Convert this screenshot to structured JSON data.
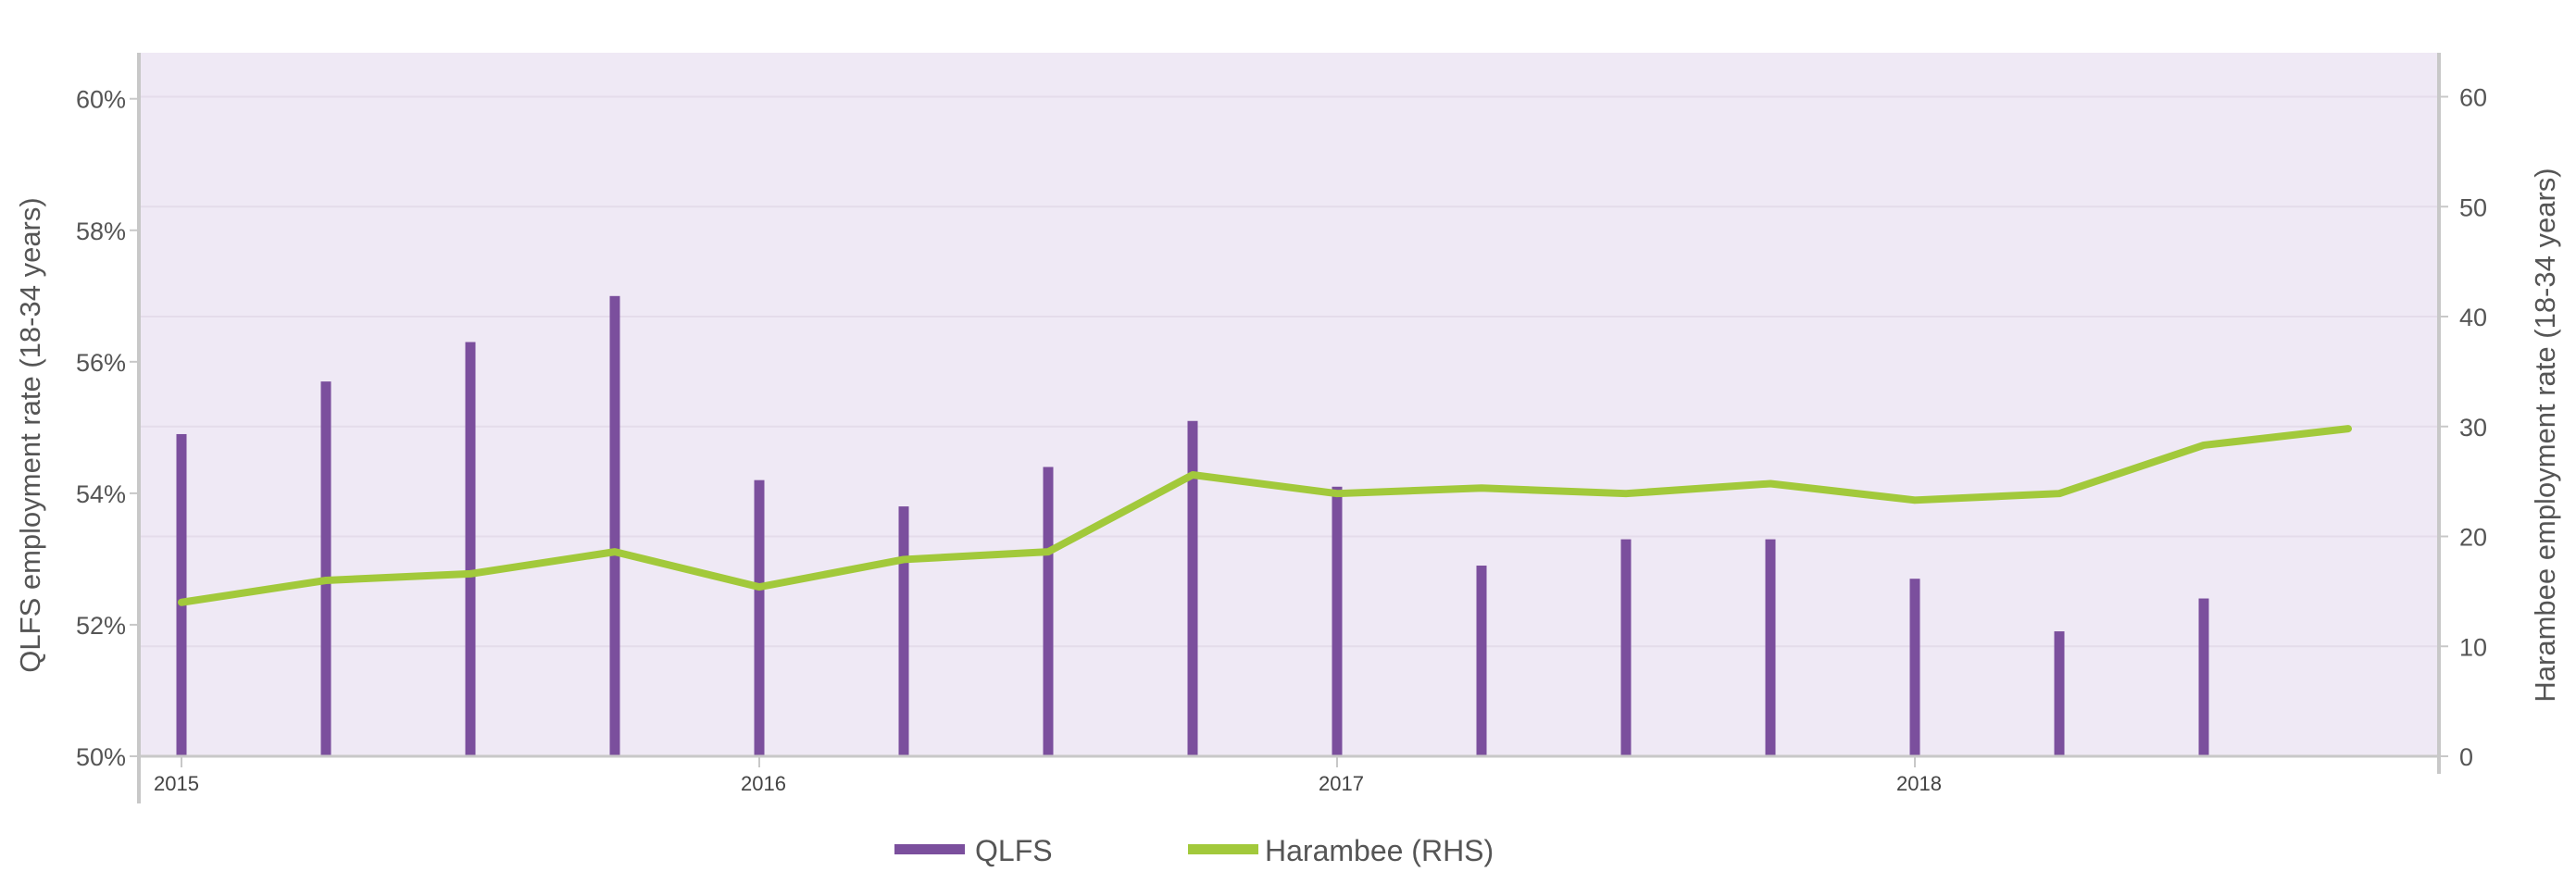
{
  "chart_data": {
    "type": "bar+line",
    "title": "",
    "left_axis": {
      "label": "QLFS employment rate (18-34 years)",
      "range": [
        50,
        60.7
      ],
      "ticks": [
        50,
        52,
        54,
        56,
        58,
        60
      ],
      "tick_labels": [
        "50%",
        "52%",
        "54%",
        "56%",
        "58%",
        "60%"
      ]
    },
    "right_axis": {
      "label": "Harambee employment rate (18-34 years)",
      "range": [
        0,
        64
      ],
      "ticks": [
        0,
        10,
        20,
        30,
        40,
        50,
        60
      ],
      "tick_labels": [
        "0",
        "10",
        "20",
        "30",
        "40",
        "50",
        "60"
      ]
    },
    "x_axis": {
      "range": [
        0,
        15.5
      ],
      "ticks": [
        0,
        4,
        8,
        12
      ],
      "tick_labels": [
        "2015",
        "2016",
        "2017",
        "2018"
      ]
    },
    "x": [
      0,
      1,
      2,
      3,
      4,
      5,
      6,
      7,
      8,
      9,
      10,
      11,
      12,
      13,
      14,
      15
    ],
    "series": [
      {
        "name": "QLFS",
        "type": "bar",
        "axis": "left",
        "color": "#7b4f9d",
        "x": [
          0,
          1,
          2,
          3,
          4,
          5,
          6,
          7,
          8,
          9,
          10,
          11,
          12,
          13,
          14
        ],
        "values": [
          54.9,
          55.7,
          56.3,
          57.0,
          54.2,
          53.8,
          54.4,
          55.1,
          54.1,
          52.9,
          53.3,
          53.3,
          52.7,
          51.9,
          52.4
        ]
      },
      {
        "name": "Harambee (RHS)",
        "type": "line",
        "axis": "right",
        "color": "#a2c93b",
        "x": [
          0,
          1,
          2,
          3,
          4,
          5,
          6,
          7,
          8,
          9,
          10,
          11,
          12,
          13,
          14,
          15
        ],
        "values": [
          14.0,
          16.0,
          16.6,
          18.6,
          15.4,
          17.9,
          18.6,
          25.6,
          23.9,
          24.4,
          23.9,
          24.8,
          23.3,
          23.9,
          28.3,
          29.8
        ]
      }
    ],
    "grid": true,
    "legend_position": "bottom-center",
    "colors": {
      "plot_background": "#efe9f5",
      "gridline": "#e4dcea",
      "axis": "#c8c8c8",
      "qlfs": "#7b4f9d",
      "harambee": "#a2c93b"
    }
  }
}
